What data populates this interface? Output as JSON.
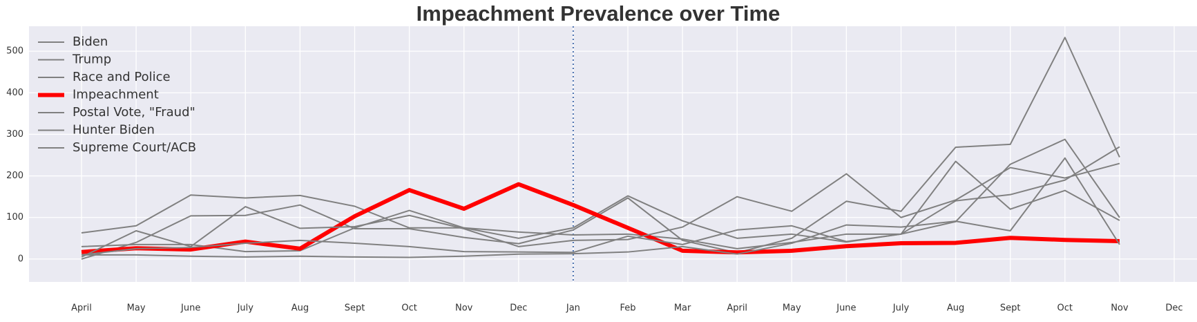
{
  "chart_data": {
    "type": "line",
    "title": "Impeachment Prevalence over Time",
    "categories": [
      "April",
      "May",
      "June",
      "July",
      "Aug",
      "Sept",
      "Oct",
      "Nov",
      "Dec",
      "Jan",
      "Feb",
      "Mar",
      "April",
      "May",
      "June",
      "July",
      "Aug",
      "Sept",
      "Oct",
      "Nov",
      "Dec"
    ],
    "series": [
      {
        "name": "Biden",
        "color": "#808080",
        "width": 2,
        "values": [
          0,
          40,
          104,
          105,
          130,
          73,
          73,
          52,
          37,
          70,
          147,
          45,
          15,
          50,
          139,
          115,
          269,
          276,
          533,
          245,
          null
        ]
      },
      {
        "name": "Trump",
        "color": "#808080",
        "width": 2,
        "values": [
          63,
          80,
          154,
          147,
          153,
          127,
          75,
          75,
          65,
          58,
          60,
          48,
          25,
          40,
          60,
          60,
          140,
          155,
          190,
          270,
          null
        ]
      },
      {
        "name": "Race and Police",
        "color": "#808080",
        "width": 2,
        "values": [
          30,
          35,
          35,
          18,
          20,
          75,
          117,
          75,
          50,
          75,
          152,
          92,
          50,
          60,
          41,
          60,
          235,
          120,
          165,
          93,
          null
        ]
      },
      {
        "name": "Impeachment",
        "color": "#ff0000",
        "width": 6,
        "values": [
          17,
          26,
          23,
          42,
          25,
          103,
          166,
          121,
          180,
          130,
          75,
          20,
          16,
          20,
          31,
          38,
          39,
          51,
          46,
          43,
          null
        ]
      },
      {
        "name": "Postal Vote, \"Fraud\"",
        "color": "#808080",
        "width": 2,
        "values": [
          10,
          25,
          28,
          38,
          45,
          38,
          30,
          18,
          17,
          16,
          55,
          35,
          70,
          80,
          42,
          60,
          90,
          228,
          288,
          100,
          null
        ]
      },
      {
        "name": "Hunter Biden",
        "color": "#808080",
        "width": 2,
        "values": [
          10,
          10,
          7,
          5,
          7,
          5,
          4,
          7,
          12,
          13,
          17,
          30,
          12,
          38,
          82,
          77,
          91,
          68,
          243,
          35,
          null
        ]
      },
      {
        "name": "Supreme Court/ACB",
        "color": "#808080",
        "width": 2,
        "values": [
          5,
          68,
          30,
          126,
          74,
          78,
          105,
          73,
          30,
          45,
          47,
          77,
          150,
          115,
          205,
          100,
          142,
          220,
          195,
          230,
          null
        ]
      }
    ],
    "ylim": [
      -55,
      560
    ],
    "yticks": [
      0,
      100,
      200,
      300,
      400,
      500
    ],
    "grid": true,
    "vline_category": "Jan",
    "legend": "upper left"
  }
}
